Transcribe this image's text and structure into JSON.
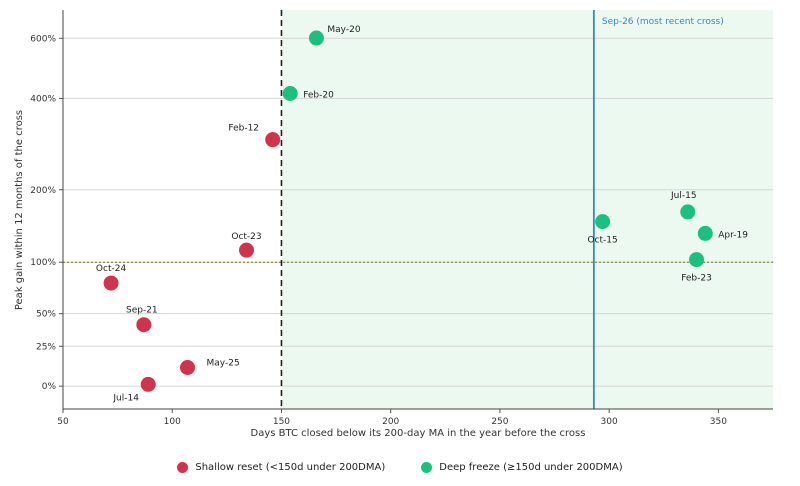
{
  "chart_data": {
    "type": "scatter",
    "title": "",
    "xlabel": "Days BTC closed below its 200-day MA in the year before the cross",
    "ylabel": "Peak gain within 12 months of the cross",
    "xlim": [
      50,
      375
    ],
    "x_ticks": [
      50,
      100,
      150,
      200,
      250,
      300,
      350
    ],
    "y_scale": "log(1 + gain/100)",
    "ylim_percent": [
      -12,
      720
    ],
    "y_ticks": [
      {
        "value": 0,
        "label": "0%"
      },
      {
        "value": 25,
        "label": "25%"
      },
      {
        "value": 50,
        "label": "50%"
      },
      {
        "value": 100,
        "label": "100%"
      },
      {
        "value": 200,
        "label": "200%"
      },
      {
        "value": 400,
        "label": "400%"
      },
      {
        "value": 600,
        "label": "600%"
      }
    ],
    "grid": "horizontal",
    "threshold_x": 150,
    "reference_y": 100,
    "latest_cross_x": 293,
    "latest_cross_label": "Sep-26 (most recent cross)",
    "series": [
      {
        "name": "Shallow reset (<150d under 200DMA)",
        "color": "#d0334d",
        "points": [
          {
            "label": "Oct-24",
            "x": 72,
            "y": 78
          },
          {
            "label": "Sep-21",
            "x": 87,
            "y": 41
          },
          {
            "label": "May-25",
            "x": 107,
            "y": 11
          },
          {
            "label": "Jul-14",
            "x": 89,
            "y": 1
          },
          {
            "label": "Oct-23",
            "x": 134,
            "y": 114
          },
          {
            "label": "Feb-12",
            "x": 146,
            "y": 297
          }
        ]
      },
      {
        "name": "Deep freeze (≥150d under 200DMA)",
        "color": "#1bc07f",
        "points": [
          {
            "label": "May-20",
            "x": 166,
            "y": 601
          },
          {
            "label": "Feb-20",
            "x": 154,
            "y": 414
          },
          {
            "label": "Oct-15",
            "x": 297,
            "y": 151
          },
          {
            "label": "Jul-15",
            "x": 336,
            "y": 165
          },
          {
            "label": "Apr-19",
            "x": 344,
            "y": 135
          },
          {
            "label": "Feb-23",
            "x": 340,
            "y": 103
          }
        ]
      }
    ]
  }
}
